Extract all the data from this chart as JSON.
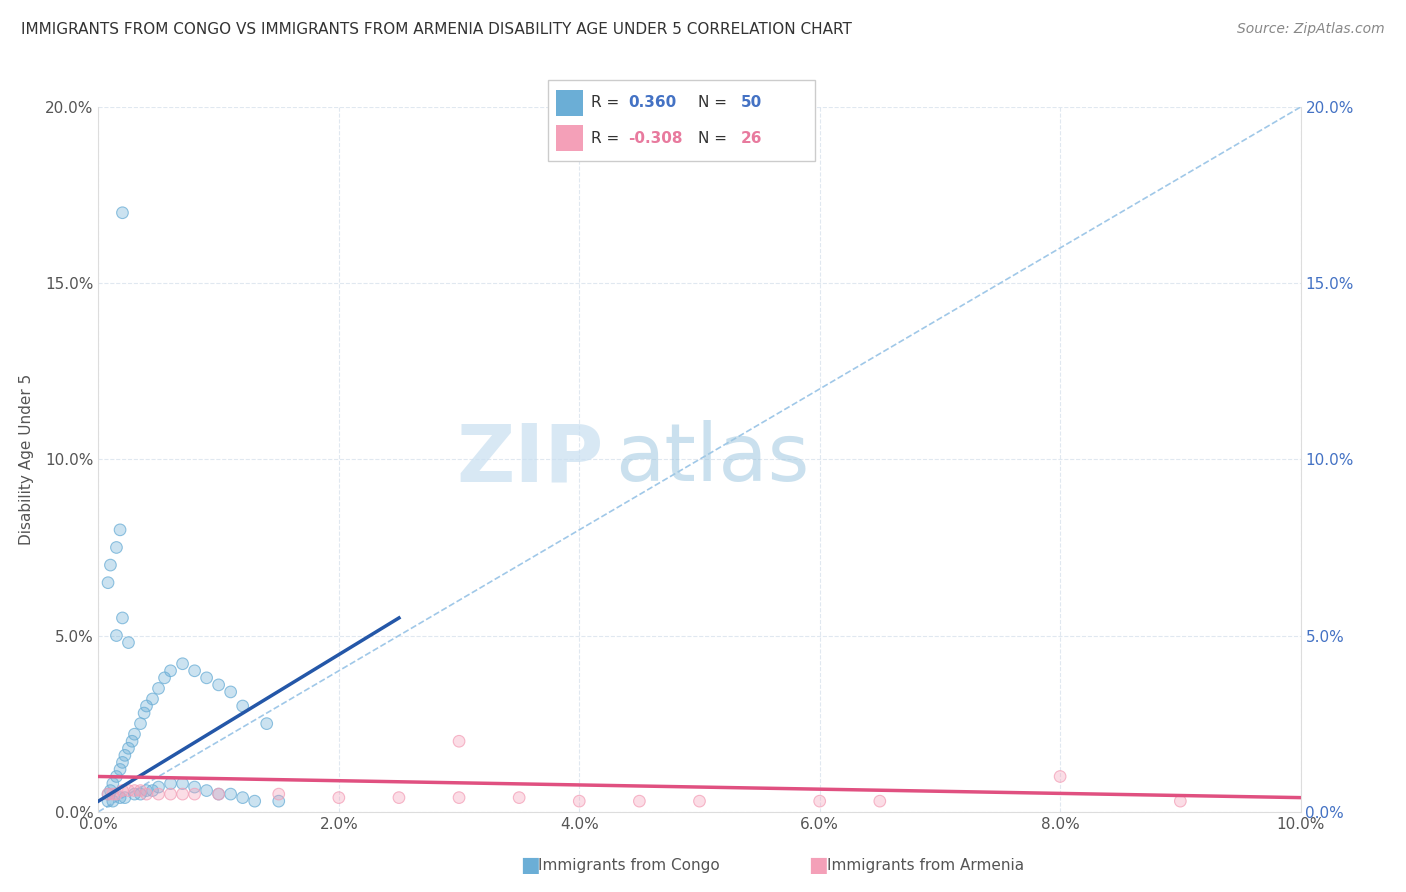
{
  "title": "IMMIGRANTS FROM CONGO VS IMMIGRANTS FROM ARMENIA DISABILITY AGE UNDER 5 CORRELATION CHART",
  "source": "Source: ZipAtlas.com",
  "ylabel": "Disability Age Under 5",
  "xlim": [
    0.0,
    0.1
  ],
  "ylim": [
    0.0,
    0.2
  ],
  "xticks": [
    0.0,
    0.02,
    0.04,
    0.06,
    0.08,
    0.1
  ],
  "yticks": [
    0.0,
    0.05,
    0.1,
    0.15,
    0.2
  ],
  "congo_color": "#6baed6",
  "armenia_color": "#f4a0b8",
  "congo_line_color": "#2457a8",
  "armenia_line_color": "#e05080",
  "diag_line_color": "#a0c8e8",
  "congo_R": "0.360",
  "congo_N": "50",
  "armenia_R": "-0.308",
  "armenia_N": "26",
  "watermark_zip": "ZIP",
  "watermark_atlas": "atlas",
  "congo_trend_x0": 0.0,
  "congo_trend_y0": 0.003,
  "congo_trend_x1": 0.025,
  "congo_trend_y1": 0.055,
  "armenia_trend_x0": 0.0,
  "armenia_trend_y0": 0.01,
  "armenia_trend_x1": 0.1,
  "armenia_trend_y1": 0.004,
  "congo_scatter_x": [
    0.0008,
    0.001,
    0.0012,
    0.0015,
    0.0018,
    0.002,
    0.0022,
    0.0025,
    0.0028,
    0.003,
    0.0035,
    0.0038,
    0.004,
    0.0045,
    0.005,
    0.0055,
    0.006,
    0.007,
    0.008,
    0.009,
    0.01,
    0.011,
    0.012,
    0.014,
    0.0015,
    0.002,
    0.0025,
    0.0008,
    0.0012,
    0.0018,
    0.0022,
    0.003,
    0.0035,
    0.004,
    0.0045,
    0.005,
    0.006,
    0.007,
    0.008,
    0.009,
    0.01,
    0.011,
    0.012,
    0.013,
    0.015,
    0.0008,
    0.001,
    0.0015,
    0.002,
    0.0018
  ],
  "congo_scatter_y": [
    0.005,
    0.006,
    0.008,
    0.01,
    0.012,
    0.014,
    0.016,
    0.018,
    0.02,
    0.022,
    0.025,
    0.028,
    0.03,
    0.032,
    0.035,
    0.038,
    0.04,
    0.042,
    0.04,
    0.038,
    0.036,
    0.034,
    0.03,
    0.025,
    0.05,
    0.055,
    0.048,
    0.003,
    0.003,
    0.004,
    0.004,
    0.005,
    0.005,
    0.006,
    0.006,
    0.007,
    0.008,
    0.008,
    0.007,
    0.006,
    0.005,
    0.005,
    0.004,
    0.003,
    0.003,
    0.065,
    0.07,
    0.075,
    0.17,
    0.08
  ],
  "armenia_scatter_x": [
    0.0008,
    0.0012,
    0.0015,
    0.002,
    0.0025,
    0.003,
    0.0035,
    0.004,
    0.005,
    0.006,
    0.007,
    0.008,
    0.01,
    0.015,
    0.02,
    0.025,
    0.03,
    0.035,
    0.04,
    0.03,
    0.045,
    0.05,
    0.06,
    0.065,
    0.08,
    0.09
  ],
  "armenia_scatter_y": [
    0.005,
    0.005,
    0.005,
    0.006,
    0.006,
    0.006,
    0.006,
    0.005,
    0.005,
    0.005,
    0.005,
    0.005,
    0.005,
    0.005,
    0.004,
    0.004,
    0.004,
    0.004,
    0.003,
    0.02,
    0.003,
    0.003,
    0.003,
    0.003,
    0.01,
    0.003
  ]
}
